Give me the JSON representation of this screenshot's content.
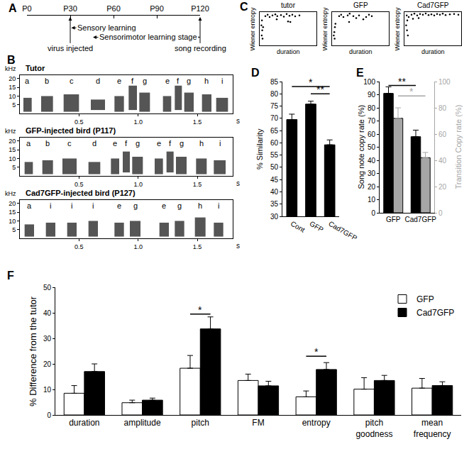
{
  "chart_data": [
    {
      "type": "timeline",
      "panel": "A",
      "xlim": [
        0,
        120
      ],
      "xticks": [
        {
          "value": 0,
          "label": "P0"
        },
        {
          "value": 30,
          "label": "P30"
        },
        {
          "value": 60,
          "label": "P60"
        },
        {
          "value": 90,
          "label": "P90"
        },
        {
          "value": 120,
          "label": "P120"
        }
      ],
      "periods": [
        {
          "text": "Sensory learning",
          "from": 30,
          "to": 65
        },
        {
          "text": "Sensorimotor learning stage",
          "from": 45,
          "to": 120
        }
      ],
      "events": [
        {
          "text": "virus injected",
          "x": 30
        },
        {
          "text": "song recording",
          "x": 120
        }
      ]
    },
    {
      "type": "spectrogram",
      "panel": "B",
      "title": "Tutor",
      "xlabel": "s",
      "ylabel": "kHz",
      "color": "#555555",
      "xlim": [
        0,
        1.8
      ],
      "xticks": [
        {
          "value": 0.5,
          "label": "0.5"
        },
        {
          "value": 1,
          "label": "1.0"
        },
        {
          "value": 1.5,
          "label": "1.5"
        }
      ],
      "ylim": [
        0,
        22
      ],
      "yticks": [
        5,
        10,
        15,
        20
      ],
      "syllables": [
        {
          "label": "a",
          "start": 0.03,
          "end": 0.1,
          "low": 1,
          "high": 9
        },
        {
          "label": "b",
          "start": 0.18,
          "end": 0.28,
          "low": 1,
          "high": 10
        },
        {
          "label": "c",
          "start": 0.37,
          "end": 0.5,
          "low": 1,
          "high": 11
        },
        {
          "label": "d",
          "start": 0.6,
          "end": 0.72,
          "low": 2,
          "high": 8
        },
        {
          "label": "e",
          "start": 0.8,
          "end": 0.88,
          "low": 1,
          "high": 10
        },
        {
          "label": "f",
          "start": 0.92,
          "end": 0.99,
          "low": 2,
          "high": 16
        },
        {
          "label": "g",
          "start": 1.01,
          "end": 1.1,
          "low": 1,
          "high": 12
        },
        {
          "label": "e",
          "start": 1.21,
          "end": 1.28,
          "low": 1,
          "high": 10
        },
        {
          "label": "f",
          "start": 1.31,
          "end": 1.37,
          "low": 2,
          "high": 16
        },
        {
          "label": "g",
          "start": 1.39,
          "end": 1.47,
          "low": 1,
          "high": 12
        },
        {
          "label": "h",
          "start": 1.54,
          "end": 1.62,
          "low": 1,
          "high": 11
        },
        {
          "label": "i",
          "start": 1.66,
          "end": 1.76,
          "low": 1,
          "high": 9
        }
      ]
    },
    {
      "type": "spectrogram",
      "title": "GFP-injected bird (P117)",
      "xlabel": "s",
      "ylabel": "kHz",
      "color": "#555555",
      "xlim": [
        0,
        1.8
      ],
      "xticks": [
        {
          "value": 0.5,
          "label": "0.5"
        },
        {
          "value": 1,
          "label": "1.0"
        },
        {
          "value": 1.5,
          "label": "1.5"
        }
      ],
      "ylim": [
        0,
        22
      ],
      "yticks": [
        5,
        10,
        15,
        20
      ],
      "syllables": [
        {
          "label": "a",
          "start": 0.04,
          "end": 0.11,
          "low": 1,
          "high": 8
        },
        {
          "label": "b",
          "start": 0.19,
          "end": 0.28,
          "low": 1,
          "high": 9
        },
        {
          "label": "c",
          "start": 0.36,
          "end": 0.48,
          "low": 1,
          "high": 10
        },
        {
          "label": "d",
          "start": 0.58,
          "end": 0.68,
          "low": 1,
          "high": 8
        },
        {
          "label": "e",
          "start": 0.77,
          "end": 0.84,
          "low": 1,
          "high": 10
        },
        {
          "label": "f",
          "start": 0.87,
          "end": 0.93,
          "low": 2,
          "high": 14
        },
        {
          "label": "g",
          "start": 0.95,
          "end": 1.04,
          "low": 1,
          "high": 11
        },
        {
          "label": "e",
          "start": 1.14,
          "end": 1.21,
          "low": 1,
          "high": 10
        },
        {
          "label": "f",
          "start": 1.24,
          "end": 1.3,
          "low": 2,
          "high": 14
        },
        {
          "label": "g",
          "start": 1.32,
          "end": 1.41,
          "low": 1,
          "high": 11
        },
        {
          "label": "h",
          "start": 1.49,
          "end": 1.58,
          "low": 1,
          "high": 10
        },
        {
          "label": "i",
          "start": 1.64,
          "end": 1.74,
          "low": 1,
          "high": 9
        }
      ]
    },
    {
      "type": "spectrogram",
      "title": "Cad7GFP-injected bird (P127)",
      "xlabel": "s",
      "ylabel": "kHz",
      "color": "#555555",
      "xlim": [
        0,
        1.8
      ],
      "xticks": [
        {
          "value": 0.5,
          "label": "0.5"
        },
        {
          "value": 1,
          "label": "1.0"
        },
        {
          "value": 1.5,
          "label": "1.5"
        }
      ],
      "ylim": [
        0,
        22
      ],
      "yticks": [
        5,
        10,
        15,
        20
      ],
      "syllables": [
        {
          "label": "a",
          "start": 0.04,
          "end": 0.12,
          "low": 1,
          "high": 8
        },
        {
          "label": "i",
          "start": 0.22,
          "end": 0.3,
          "low": 1,
          "high": 9
        },
        {
          "label": "i",
          "start": 0.4,
          "end": 0.48,
          "low": 1,
          "high": 9
        },
        {
          "label": "i",
          "start": 0.58,
          "end": 0.66,
          "low": 1,
          "high": 10
        },
        {
          "label": "e",
          "start": 0.8,
          "end": 0.88,
          "low": 1,
          "high": 9
        },
        {
          "label": "g",
          "start": 0.93,
          "end": 1.02,
          "low": 1,
          "high": 10
        },
        {
          "label": "e",
          "start": 1.18,
          "end": 1.26,
          "low": 1,
          "high": 9
        },
        {
          "label": "g",
          "start": 1.31,
          "end": 1.39,
          "low": 1,
          "high": 10
        },
        {
          "label": "h",
          "start": 1.48,
          "end": 1.57,
          "low": 1,
          "high": 12
        },
        {
          "label": "i",
          "start": 1.64,
          "end": 1.72,
          "low": 1,
          "high": 9
        }
      ]
    },
    {
      "type": "scatter",
      "panel": "C",
      "title": "tutor",
      "xlabel": "duration",
      "ylabel": "Wiener entropy",
      "tick_labels": false,
      "color": "#000000",
      "xlim": [
        0,
        200
      ],
      "ylim": [
        0,
        100
      ],
      "x": [
        20,
        28,
        35,
        45,
        55,
        62,
        75,
        85,
        95,
        105,
        115,
        125,
        140,
        100,
        108,
        8,
        6,
        9,
        7,
        10,
        12,
        60
      ],
      "y": [
        88,
        92,
        85,
        90,
        93,
        88,
        91,
        86,
        94,
        89,
        92,
        87,
        90,
        72,
        70,
        75,
        60,
        45,
        30,
        20,
        55,
        78
      ]
    },
    {
      "type": "scatter",
      "title": "GFP",
      "xlabel": "duration",
      "ylabel": "Wiener entropy",
      "tick_labels": false,
      "color": "#000000",
      "xlim": [
        0,
        200
      ],
      "ylim": [
        0,
        100
      ],
      "x": [
        8,
        10,
        6,
        12,
        9,
        25,
        32,
        40,
        55,
        62,
        75,
        85,
        95,
        110,
        120,
        130,
        60,
        140
      ],
      "y": [
        40,
        55,
        30,
        65,
        20,
        88,
        92,
        85,
        90,
        95,
        88,
        82,
        90,
        78,
        85,
        92,
        70,
        88
      ]
    },
    {
      "type": "scatter",
      "title": "Cad7GFP",
      "xlabel": "duration",
      "ylabel": "Wiener entropy",
      "tick_labels": false,
      "color": "#000000",
      "xlim": [
        0,
        200
      ],
      "ylim": [
        0,
        100
      ],
      "x": [
        8,
        10,
        6,
        9,
        12,
        15,
        25,
        35,
        45,
        55,
        65,
        75,
        85,
        95,
        105,
        115,
        125,
        135,
        145,
        160,
        175,
        190,
        30,
        50
      ],
      "y": [
        90,
        75,
        60,
        45,
        30,
        85,
        92,
        95,
        90,
        94,
        92,
        96,
        91,
        93,
        90,
        94,
        92,
        95,
        91,
        93,
        94,
        92,
        80,
        82
      ]
    },
    {
      "type": "bar",
      "panel": "D",
      "categories": [
        "Cont",
        "GFP",
        "Cad7GFP"
      ],
      "values": [
        69.5,
        75.8,
        59.2
      ],
      "errors": [
        2.2,
        1.2,
        2.0
      ],
      "color": "#000000",
      "ylabel": "% Similarity",
      "ylim": [
        30,
        85
      ],
      "yticks": [
        30,
        35,
        40,
        45,
        50,
        55,
        60,
        65,
        70,
        75,
        80,
        85
      ],
      "annotations": [
        {
          "text": "*",
          "from": "Cont",
          "to": "Cad7GFP",
          "y": 83
        },
        {
          "text": "**",
          "from": "GFP",
          "to": "Cad7GFP",
          "y": 80
        }
      ]
    },
    {
      "type": "bar",
      "panel": "E",
      "categories": [
        "GFP",
        "Cad7GFP"
      ],
      "ylabel": "Song note copy rate (%)",
      "y2label": "Transition Copy rate (%)",
      "ylim": [
        0,
        100
      ],
      "yticks": [
        0,
        10,
        20,
        30,
        40,
        50,
        60,
        70,
        80,
        90,
        100
      ],
      "y2lim": [
        0,
        100
      ],
      "y2ticks": [
        0,
        20,
        40,
        60,
        80,
        100
      ],
      "series": [
        {
          "color": "#000000",
          "values": [
            91,
            58
          ],
          "errors": [
            5,
            5
          ]
        },
        {
          "color": "#a6a6a6",
          "axis": "y2",
          "values": [
            72,
            42
          ],
          "errors": [
            8,
            4
          ]
        }
      ],
      "annotations": [
        {
          "text": "**",
          "from": "GFP",
          "to": "Cad7GFP",
          "y": 97,
          "color": "#000000"
        },
        {
          "text": "*",
          "from": "GFP",
          "to": "Cad7GFP",
          "y": 89,
          "axis": "y2",
          "color": "#a6a6a6"
        }
      ]
    },
    {
      "type": "bar",
      "panel": "F",
      "categories": [
        "duration",
        "amplitude",
        "pitch",
        "FM",
        "entropy",
        "pitch goodness",
        "mean frequency"
      ],
      "ylabel": "% Difference from the tutor",
      "ylim": [
        0,
        50
      ],
      "yticks": [
        0,
        10,
        20,
        30,
        40,
        50
      ],
      "legend": "top right",
      "series": [
        {
          "name": "GFP",
          "color": "#ffffff",
          "values": [
            8.5,
            4.8,
            18.3,
            13.5,
            7.1,
            10.1,
            10.5
          ],
          "errors": [
            3.0,
            1.0,
            5.0,
            2.5,
            2.3,
            4.5,
            3.8
          ]
        },
        {
          "name": "Cad7GFP",
          "color": "#000000",
          "values": [
            17.0,
            5.8,
            33.7,
            11.4,
            17.8,
            13.5,
            11.5
          ],
          "errors": [
            3.0,
            0.8,
            4.7,
            1.8,
            2.7,
            2.0,
            1.5
          ]
        }
      ],
      "annotations": [
        {
          "text": "*",
          "category": "pitch",
          "y": 39.5
        },
        {
          "text": "*",
          "category": "entropy",
          "y": 23
        }
      ]
    }
  ]
}
